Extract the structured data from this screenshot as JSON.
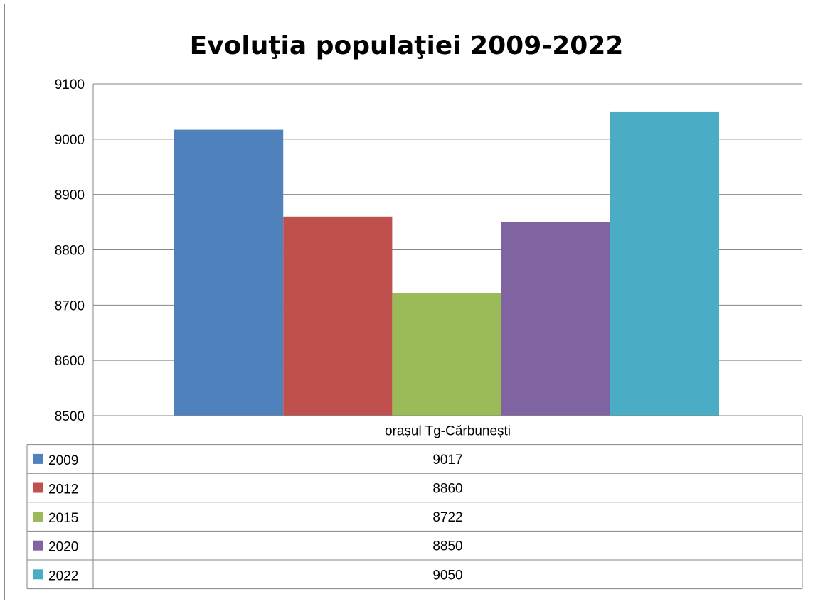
{
  "chart_data": {
    "type": "bar",
    "title": "Evoluţia populaţiei 2009-2022",
    "categories": [
      "orașul Tg-Cărbunești"
    ],
    "series": [
      {
        "name": "2009",
        "values": [
          9017
        ],
        "color": "#4f81bd"
      },
      {
        "name": "2012",
        "values": [
          8860
        ],
        "color": "#c0504d"
      },
      {
        "name": "2015",
        "values": [
          8722
        ],
        "color": "#9bbb59"
      },
      {
        "name": "2020",
        "values": [
          8850
        ],
        "color": "#8064a2"
      },
      {
        "name": "2022",
        "values": [
          9050
        ],
        "color": "#4bacc6"
      }
    ],
    "ylim": [
      8500,
      9100
    ],
    "yticks": [
      8500,
      8600,
      8700,
      8800,
      8900,
      9000,
      9100
    ],
    "grid": true,
    "legend": "data table with legend keys below plot"
  }
}
